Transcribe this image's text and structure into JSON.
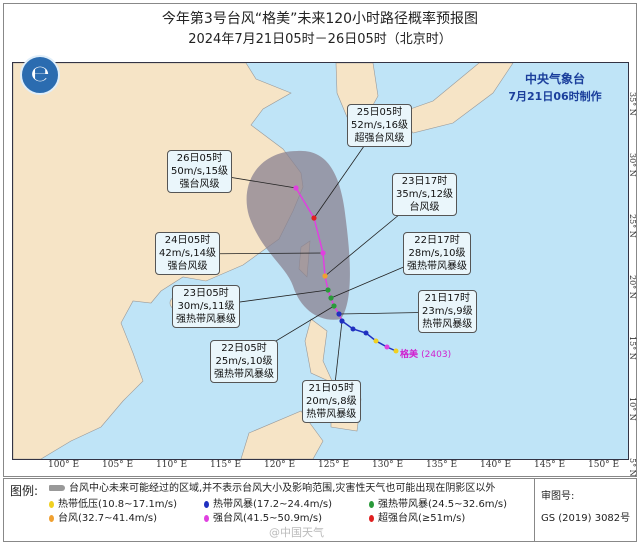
{
  "header": {
    "title": "今年第3号台风“格美”未来120小时路径概率预报图",
    "subtitle": "2024年7月21日05时－26日05时（北京时）"
  },
  "org": {
    "name": "中央气象台",
    "made": "7月21日06时制作"
  },
  "map": {
    "lon_labels": [
      "100° E",
      "105° E",
      "110° E",
      "115° E",
      "120° E",
      "125° E",
      "130° E",
      "135° E",
      "140° E",
      "145° E",
      "150° E"
    ],
    "lat_labels": [
      "35° N",
      "30° N",
      "25° N",
      "20° N",
      "15° N",
      "10° N",
      "5° N"
    ],
    "typhoon_name": "格美",
    "typhoon_id": "(2403)",
    "colors": {
      "ocean": "#bfe4f7",
      "land": "#f6e4c6",
      "cone": "#8a8290",
      "track": "#e040e0"
    },
    "forecasts": [
      {
        "time": "25日05时",
        "wind": "52m/s,16级",
        "level": "超强台风级",
        "color": "#e02020"
      },
      {
        "time": "26日05时",
        "wind": "50m/s,15级",
        "level": "强台风级",
        "color": "#e040e0"
      },
      {
        "time": "23日17时",
        "wind": "35m/s,12级",
        "level": "台风级",
        "color": "#f0a030"
      },
      {
        "time": "24日05时",
        "wind": "42m/s,14级",
        "level": "强台风级",
        "color": "#e040e0"
      },
      {
        "time": "22日17时",
        "wind": "28m/s,10级",
        "level": "强热带风暴级",
        "color": "#2a9a3a"
      },
      {
        "time": "23日05时",
        "wind": "30m/s,11级",
        "level": "强热带风暴级",
        "color": "#2a9a3a"
      },
      {
        "time": "21日17时",
        "wind": "23m/s,9级",
        "level": "热带风暴级",
        "color": "#2030c0"
      },
      {
        "time": "22日05时",
        "wind": "25m/s,10级",
        "level": "强热带风暴级",
        "color": "#2a9a3a"
      },
      {
        "time": "21日05时",
        "wind": "20m/s,8级",
        "level": "热带风暴级",
        "color": "#2030c0"
      }
    ]
  },
  "legend": {
    "title": "图例:",
    "cone_note": "台风中心未来可能经过的区域,并不表示台风大小及影响范围,灾害性天气也可能出现在阴影区以外",
    "items": [
      {
        "label": "热带低压(10.8~17.1m/s)",
        "color": "#f0d020"
      },
      {
        "label": "热带风暴(17.2~24.4m/s)",
        "color": "#2030c0"
      },
      {
        "label": "强热带风暴(24.5~32.6m/s)",
        "color": "#2a9a3a"
      },
      {
        "label": "台风(32.7~41.4m/s)",
        "color": "#f0a030"
      },
      {
        "label": "强台风(41.5~50.9m/s)",
        "color": "#e040e0"
      },
      {
        "label": "超强台风(≥51m/s)",
        "color": "#e02020"
      }
    ],
    "approval_label": "审图号:",
    "approval_no": "GS (2019) 3082号"
  },
  "watermark": "@中国天气"
}
